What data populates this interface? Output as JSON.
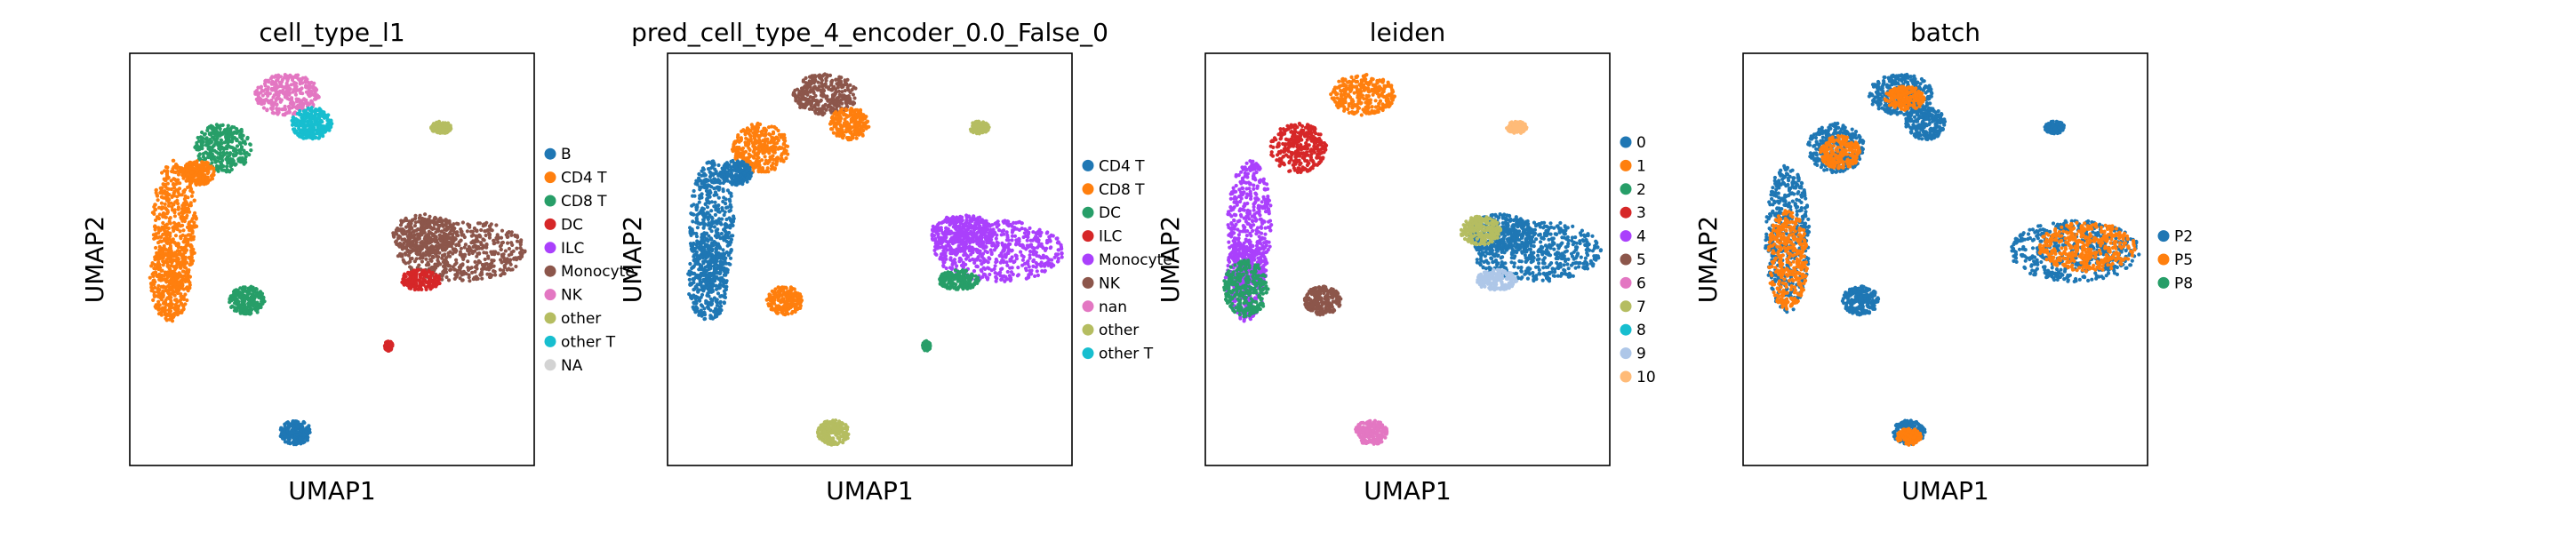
{
  "chart_data": [
    {
      "type": "scatter",
      "title": "cell_type_l1",
      "xlabel": "UMAP1",
      "ylabel": "UMAP2",
      "grid": false,
      "legend": "right",
      "legend_entries": [
        {
          "label": "B",
          "color": "#1f77b4"
        },
        {
          "label": "CD4 T",
          "color": "#ff7f0e"
        },
        {
          "label": "CD8 T",
          "color": "#279e68"
        },
        {
          "label": "DC",
          "color": "#d62728"
        },
        {
          "label": "ILC",
          "color": "#aa40fc"
        },
        {
          "label": "Monocyte",
          "color": "#8c564b"
        },
        {
          "label": "NK",
          "color": "#e377c2"
        },
        {
          "label": "other",
          "color": "#b5bd61"
        },
        {
          "label": "other T",
          "color": "#17becf"
        },
        {
          "label": "NA",
          "color": "#d3d3d3"
        }
      ],
      "clusters": [
        {
          "region": "left-column",
          "color": "#ff7f0e"
        },
        {
          "region": "lower-left-square",
          "color": "#279e68"
        },
        {
          "region": "upper-left",
          "color": "#279e68"
        },
        {
          "region": "upper-left-small",
          "color": "#ff7f0e"
        },
        {
          "region": "top",
          "color": "#e377c2"
        },
        {
          "region": "top-under",
          "color": "#17becf"
        },
        {
          "region": "upper-right-small",
          "color": "#b5bd61"
        },
        {
          "region": "right-large",
          "color": "#8c564b"
        },
        {
          "region": "right-large-tail",
          "color": "#d62728"
        },
        {
          "region": "right-small-dot",
          "color": "#d62728"
        },
        {
          "region": "bottom",
          "color": "#1f77b4"
        }
      ]
    },
    {
      "type": "scatter",
      "title": "pred_cell_type_4_encoder_0.0_False_0",
      "xlabel": "UMAP1",
      "ylabel": "UMAP2",
      "grid": false,
      "legend": "right",
      "legend_entries": [
        {
          "label": "CD4 T",
          "color": "#1f77b4"
        },
        {
          "label": "CD8 T",
          "color": "#ff7f0e"
        },
        {
          "label": "DC",
          "color": "#279e68"
        },
        {
          "label": "ILC",
          "color": "#d62728"
        },
        {
          "label": "Monocyte",
          "color": "#aa40fc"
        },
        {
          "label": "NK",
          "color": "#8c564b"
        },
        {
          "label": "nan",
          "color": "#e377c2"
        },
        {
          "label": "other",
          "color": "#b5bd61"
        },
        {
          "label": "other T",
          "color": "#17becf"
        }
      ],
      "clusters": [
        {
          "region": "left-column",
          "color": "#1f77b4"
        },
        {
          "region": "lower-left-square",
          "color": "#ff7f0e"
        },
        {
          "region": "upper-left",
          "color": "#ff7f0e"
        },
        {
          "region": "upper-left-small",
          "color": "#1f77b4"
        },
        {
          "region": "top",
          "color": "#8c564b"
        },
        {
          "region": "top-under",
          "color": "#ff7f0e"
        },
        {
          "region": "upper-right-small",
          "color": "#b5bd61"
        },
        {
          "region": "right-large",
          "color": "#aa40fc"
        },
        {
          "region": "right-large-tail",
          "color": "#279e68"
        },
        {
          "region": "right-small-dot",
          "color": "#279e68"
        },
        {
          "region": "bottom",
          "color": "#b5bd61"
        }
      ]
    },
    {
      "type": "scatter",
      "title": "leiden",
      "xlabel": "UMAP1",
      "ylabel": "UMAP2",
      "grid": false,
      "legend": "right",
      "legend_entries": [
        {
          "label": "0",
          "color": "#1f77b4"
        },
        {
          "label": "1",
          "color": "#ff7f0e"
        },
        {
          "label": "2",
          "color": "#279e68"
        },
        {
          "label": "3",
          "color": "#d62728"
        },
        {
          "label": "4",
          "color": "#aa40fc"
        },
        {
          "label": "5",
          "color": "#8c564b"
        },
        {
          "label": "6",
          "color": "#e377c2"
        },
        {
          "label": "7",
          "color": "#b5bd61"
        },
        {
          "label": "8",
          "color": "#17becf"
        },
        {
          "label": "9",
          "color": "#aec7e8"
        },
        {
          "label": "10",
          "color": "#ffbb78"
        }
      ],
      "clusters": [
        {
          "region": "left-column",
          "color": "#aa40fc"
        },
        {
          "region": "left-column-low",
          "color": "#279e68"
        },
        {
          "region": "lower-left-square",
          "color": "#8c564b"
        },
        {
          "region": "upper-left",
          "color": "#d62728"
        },
        {
          "region": "top",
          "color": "#ff7f0e"
        },
        {
          "region": "upper-right-small",
          "color": "#ffbb78"
        },
        {
          "region": "right-large",
          "color": "#1f77b4"
        },
        {
          "region": "right-large-left",
          "color": "#b5bd61"
        },
        {
          "region": "right-large-tail",
          "color": "#aec7e8"
        },
        {
          "region": "bottom",
          "color": "#e377c2"
        }
      ]
    },
    {
      "type": "scatter",
      "title": "batch",
      "xlabel": "UMAP1",
      "ylabel": "UMAP2",
      "grid": false,
      "legend": "right",
      "legend_entries": [
        {
          "label": "P2",
          "color": "#1f77b4"
        },
        {
          "label": "P5",
          "color": "#ff7f0e"
        },
        {
          "label": "P8",
          "color": "#279e68"
        }
      ],
      "clusters": [
        {
          "region": "all",
          "color": "#1f77b4"
        },
        {
          "region": "all-mixed",
          "color": "#ff7f0e"
        }
      ]
    }
  ]
}
